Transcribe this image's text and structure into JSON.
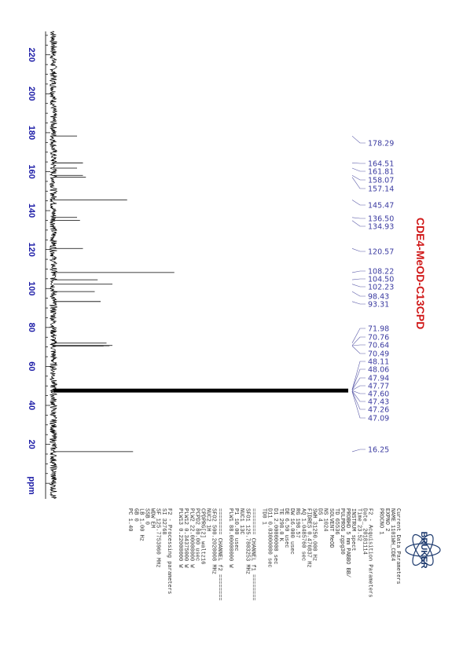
{
  "chart_data": {
    "type": "line",
    "orientation": "rotated-90",
    "axis": {
      "unit_label": "ppm",
      "ticks": [
        220,
        200,
        180,
        160,
        140,
        120,
        100,
        80,
        60,
        40,
        20
      ],
      "range": [
        232,
        -8
      ]
    },
    "title": "CDE4-MeOD-C13CPD",
    "peak_labels": [
      "178.29",
      "164.51",
      "161.81",
      "158.07",
      "157.14",
      "145.47",
      "136.50",
      "134.93",
      "120.57",
      "108.22",
      "104.50",
      "102.23",
      "98.43",
      "93.31",
      "71.98",
      "70.76",
      "70.64",
      "70.49",
      "48.11",
      "48.06",
      "47.94",
      "47.77",
      "47.60",
      "47.43",
      "47.26",
      "47.09",
      "16.25"
    ],
    "peaks": [
      {
        "ppm": 178.29,
        "height": 0.08
      },
      {
        "ppm": 164.51,
        "height": 0.1
      },
      {
        "ppm": 161.81,
        "height": 0.08
      },
      {
        "ppm": 158.07,
        "height": 0.1
      },
      {
        "ppm": 157.14,
        "height": 0.11
      },
      {
        "ppm": 145.47,
        "height": 0.25
      },
      {
        "ppm": 136.5,
        "height": 0.08
      },
      {
        "ppm": 134.93,
        "height": 0.09
      },
      {
        "ppm": 120.57,
        "height": 0.1
      },
      {
        "ppm": 108.22,
        "height": 0.41
      },
      {
        "ppm": 104.5,
        "height": 0.15
      },
      {
        "ppm": 102.23,
        "height": 0.2
      },
      {
        "ppm": 98.43,
        "height": 0.14
      },
      {
        "ppm": 93.31,
        "height": 0.16
      },
      {
        "ppm": 71.98,
        "height": 0.18
      },
      {
        "ppm": 70.76,
        "height": 0.2
      },
      {
        "ppm": 70.64,
        "height": 0.19
      },
      {
        "ppm": 70.49,
        "height": 0.17
      },
      {
        "ppm": 48.11,
        "height": 1.0
      },
      {
        "ppm": 48.06,
        "height": 1.0
      },
      {
        "ppm": 47.94,
        "height": 1.0
      },
      {
        "ppm": 47.77,
        "height": 1.0
      },
      {
        "ppm": 47.6,
        "height": 1.0
      },
      {
        "ppm": 47.43,
        "height": 1.0
      },
      {
        "ppm": 47.26,
        "height": 1.0
      },
      {
        "ppm": 47.09,
        "height": 1.0
      },
      {
        "ppm": 16.25,
        "height": 0.27
      }
    ]
  },
  "parameters": [
    "Current Data Parameters",
    "NAME        1101WH_CDE4",
    "EXPNO                 2",
    "PROCNO                1",
    "",
    "F2 - Acquisition Parameters",
    "Date_          20181114",
    "Time              23.52",
    "INSTRUM           spect",
    "PROBHD   5 mm PABBO BB/",
    "PULPROG         zgpg30",
    "TD               65536",
    "SOLVENT           MeOD",
    "NS                1024",
    "DS                   4",
    "SWH          31250.000 Hz",
    "FIDRES        0.476837 Hz",
    "AQ           1.0485760 sec",
    "RG              198.57",
    "DW              16.000 usec",
    "DE                6.50 usec",
    "TE               298.0 K",
    "D1          2.00000000 sec",
    "D11         0.03000000 sec",
    "TD0                  1",
    "",
    "======== CHANNEL f1 ========",
    "SFO1       125.7803253 MHz",
    "NUC1               13C",
    "P1               10.00 usec",
    "PLW1       88.00000000 W",
    "",
    "======== CHANNEL f2 ========",
    "SFO2       500.2020008 MHz",
    "NUC2                1H",
    "CPDPRG[2]       waltz16",
    "PCPD2            80.00 usec",
    "PLW2       22.00000000 W",
    "PLW12       0.34375000 W",
    "PLW13       0.22000000 W",
    "",
    "F2 - Processing parameters",
    "SI               32768",
    "SF         125.7753960 MHz",
    "WDW                 EM",
    "SSB                  0",
    "LB                1.00 Hz",
    "GB                   0",
    "PC                1.40"
  ],
  "logo": {
    "text": "BRUKER"
  },
  "colors": {
    "axis_text": "#1a1aa6",
    "peak_label": "#3a3aa0",
    "title": "#d01818",
    "spectrum": "#000000"
  }
}
